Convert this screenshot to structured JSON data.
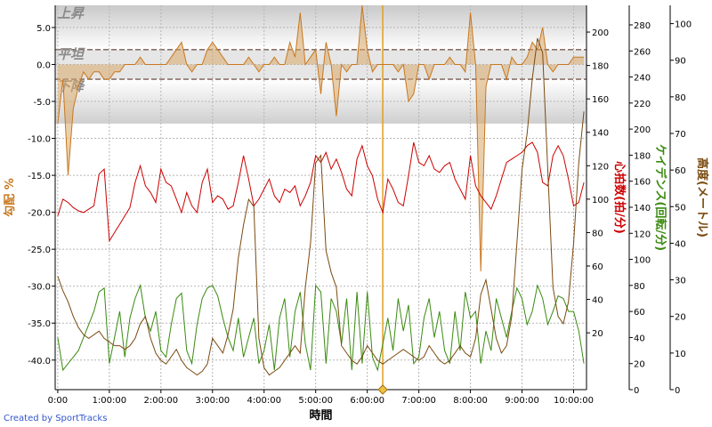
{
  "chart_data": {
    "type": "line",
    "xlabel": "時間",
    "x_ticks": [
      "0:00",
      "1:00:00",
      "2:00:00",
      "3:00:00",
      "4:00:00",
      "5:00:00",
      "6:00:00",
      "7:00:00",
      "8:00:00",
      "9:00:00",
      "10:00:00"
    ],
    "x_hours": [
      0,
      1,
      2,
      3,
      4,
      5,
      6,
      7,
      8,
      9,
      10
    ],
    "xlim_hours": [
      -0.05,
      10.25
    ],
    "marker_hour": 6.3,
    "grid": true,
    "bands": {
      "upper_label": "上昇",
      "flat_label": "平坦",
      "lower_label": "下降",
      "flat_range": [
        -2,
        2
      ]
    },
    "axes": {
      "grade": {
        "label": "勾配 %",
        "range": [
          -44,
          8
        ],
        "ticks": [
          "5.0",
          "0.0",
          "-5.0",
          "-10.0",
          "-15.0",
          "-20.0",
          "-25.0",
          "-30.0",
          "-35.0",
          "-40.0"
        ],
        "tick_values": [
          5,
          0,
          -5,
          -10,
          -15,
          -20,
          -25,
          -30,
          -35,
          -40
        ],
        "color": "#c8781e"
      },
      "heart_rate": {
        "label": "心拍数(拍/分)",
        "range": [
          -14,
          216
        ],
        "ticks": [
          "200",
          "180",
          "160",
          "140",
          "120",
          "100",
          "80",
          "60",
          "40",
          "20"
        ],
        "tick_values": [
          200,
          180,
          160,
          140,
          120,
          100,
          80,
          60,
          40,
          20
        ],
        "color": "#cc0000"
      },
      "cadence": {
        "label": "ケイデンス(回転/分)",
        "range": [
          0,
          295
        ],
        "ticks": [
          "280",
          "260",
          "240",
          "220",
          "200",
          "180",
          "160",
          "140",
          "120",
          "100",
          "80",
          "60",
          "40",
          "20",
          "0"
        ],
        "tick_values": [
          280,
          260,
          240,
          220,
          200,
          180,
          160,
          140,
          120,
          100,
          80,
          60,
          40,
          20,
          0
        ],
        "color": "#3a8a10"
      },
      "elevation": {
        "label": "高度(メートル)",
        "range": [
          0,
          105
        ],
        "ticks": [
          "100",
          "90",
          "80",
          "70",
          "60",
          "50",
          "40",
          "30",
          "20",
          "10",
          "0"
        ],
        "tick_values": [
          100,
          90,
          80,
          70,
          60,
          50,
          40,
          30,
          20,
          10,
          0
        ],
        "color": "#7a4a10"
      }
    },
    "series": [
      {
        "name": "勾配",
        "axis": "grade",
        "color": "#c8781e",
        "x": [
          0.0,
          0.1,
          0.2,
          0.3,
          0.4,
          0.5,
          0.6,
          0.7,
          0.8,
          0.9,
          1.0,
          1.1,
          1.2,
          1.3,
          1.4,
          1.5,
          1.6,
          1.7,
          1.8,
          1.9,
          2.0,
          2.1,
          2.2,
          2.3,
          2.4,
          2.5,
          2.6,
          2.7,
          2.8,
          2.9,
          3.0,
          3.1,
          3.2,
          3.3,
          3.4,
          3.5,
          3.6,
          3.7,
          3.8,
          3.9,
          4.0,
          4.1,
          4.2,
          4.3,
          4.4,
          4.5,
          4.6,
          4.7,
          4.8,
          4.9,
          5.0,
          5.1,
          5.2,
          5.3,
          5.4,
          5.5,
          5.6,
          5.7,
          5.8,
          5.9,
          6.0,
          6.1,
          6.2,
          6.3,
          6.4,
          6.5,
          6.6,
          6.7,
          6.8,
          6.9,
          7.0,
          7.1,
          7.2,
          7.3,
          7.4,
          7.5,
          7.6,
          7.7,
          7.8,
          7.9,
          8.0,
          8.1,
          8.2,
          8.3,
          8.4,
          8.5,
          8.6,
          8.7,
          8.8,
          8.9,
          9.0,
          9.1,
          9.2,
          9.3,
          9.4,
          9.5,
          9.6,
          9.7,
          9.8,
          9.9,
          10.0,
          10.1,
          10.2
        ],
        "values": [
          -8,
          -2,
          -15,
          -6,
          -3,
          -1,
          -2,
          -1,
          -1,
          -2,
          -2,
          -1,
          -1,
          0,
          0,
          0,
          1,
          0,
          0,
          0,
          0,
          0,
          1,
          2,
          3,
          0,
          -1,
          0,
          0,
          2,
          3,
          2,
          1,
          0,
          0,
          0,
          0,
          1,
          0,
          -1,
          0,
          0,
          1,
          0,
          0,
          3,
          1,
          7,
          0,
          1,
          2,
          -4,
          3,
          0,
          -7,
          0,
          -1,
          0,
          0,
          8,
          2,
          -1,
          0,
          0,
          0,
          0,
          -1,
          0,
          -5,
          -4,
          0,
          0,
          -2,
          0,
          0,
          0,
          1,
          0,
          0,
          -1,
          7,
          0,
          -28,
          -3,
          0,
          0,
          0,
          -2,
          1,
          0,
          0,
          1,
          3,
          2,
          5,
          0,
          -1,
          0,
          0,
          0,
          1,
          1,
          1
        ]
      },
      {
        "name": "心拍数",
        "axis": "heart_rate",
        "color": "#cc0000",
        "x": [
          0.0,
          0.1,
          0.2,
          0.3,
          0.4,
          0.5,
          0.6,
          0.7,
          0.8,
          0.9,
          1.0,
          1.1,
          1.2,
          1.3,
          1.4,
          1.5,
          1.6,
          1.7,
          1.8,
          1.9,
          2.0,
          2.1,
          2.2,
          2.3,
          2.4,
          2.5,
          2.6,
          2.7,
          2.8,
          2.9,
          3.0,
          3.1,
          3.2,
          3.3,
          3.4,
          3.5,
          3.6,
          3.7,
          3.8,
          3.9,
          4.0,
          4.1,
          4.2,
          4.3,
          4.4,
          4.5,
          4.6,
          4.7,
          4.8,
          4.9,
          5.0,
          5.1,
          5.2,
          5.3,
          5.4,
          5.5,
          5.6,
          5.7,
          5.8,
          5.9,
          6.0,
          6.1,
          6.2,
          6.3,
          6.4,
          6.5,
          6.6,
          6.7,
          6.8,
          6.9,
          7.0,
          7.1,
          7.2,
          7.3,
          7.4,
          7.5,
          7.6,
          7.7,
          7.8,
          7.9,
          8.0,
          8.1,
          8.2,
          8.3,
          8.4,
          8.5,
          8.6,
          8.7,
          8.8,
          8.9,
          9.0,
          9.1,
          9.2,
          9.3,
          9.4,
          9.5,
          9.6,
          9.7,
          9.8,
          9.9,
          10.0,
          10.1,
          10.2
        ],
        "values": [
          90,
          100,
          98,
          95,
          93,
          92,
          94,
          96,
          115,
          118,
          75,
          80,
          85,
          90,
          95,
          110,
          120,
          108,
          104,
          98,
          118,
          110,
          108,
          100,
          92,
          104,
          96,
          92,
          110,
          118,
          98,
          102,
          100,
          94,
          96,
          110,
          126,
          112,
          96,
          100,
          106,
          112,
          102,
          98,
          106,
          104,
          108,
          96,
          102,
          110,
          126,
          122,
          128,
          118,
          124,
          116,
          106,
          102,
          124,
          132,
          120,
          114,
          100,
          92,
          112,
          106,
          98,
          96,
          114,
          134,
          122,
          120,
          126,
          118,
          116,
          120,
          122,
          112,
          106,
          100,
          126,
          108,
          102,
          98,
          94,
          102,
          112,
          122,
          124,
          126,
          128,
          132,
          134,
          128,
          110,
          108,
          126,
          132,
          126,
          112,
          96,
          98,
          110
        ]
      },
      {
        "name": "ケイデンス",
        "axis": "cadence",
        "color": "#3a8a10",
        "x": [
          0.0,
          0.1,
          0.2,
          0.3,
          0.4,
          0.5,
          0.6,
          0.7,
          0.8,
          0.9,
          1.0,
          1.1,
          1.2,
          1.3,
          1.4,
          1.5,
          1.6,
          1.7,
          1.8,
          1.9,
          2.0,
          2.1,
          2.2,
          2.3,
          2.4,
          2.5,
          2.6,
          2.7,
          2.8,
          2.9,
          3.0,
          3.1,
          3.2,
          3.3,
          3.4,
          3.5,
          3.6,
          3.7,
          3.8,
          3.9,
          4.0,
          4.1,
          4.2,
          4.3,
          4.4,
          4.5,
          4.6,
          4.7,
          4.8,
          4.9,
          5.0,
          5.1,
          5.2,
          5.3,
          5.4,
          5.5,
          5.6,
          5.7,
          5.8,
          5.9,
          6.0,
          6.1,
          6.2,
          6.3,
          6.4,
          6.5,
          6.6,
          6.7,
          6.8,
          6.9,
          7.0,
          7.1,
          7.2,
          7.3,
          7.4,
          7.5,
          7.6,
          7.7,
          7.8,
          7.9,
          8.0,
          8.1,
          8.2,
          8.3,
          8.4,
          8.5,
          8.6,
          8.7,
          8.8,
          8.9,
          9.0,
          9.1,
          9.2,
          9.3,
          9.4,
          9.5,
          9.6,
          9.7,
          9.8,
          9.9,
          10.0,
          10.1,
          10.2
        ],
        "values": [
          40,
          15,
          20,
          25,
          30,
          40,
          50,
          60,
          75,
          78,
          20,
          40,
          60,
          25,
          55,
          70,
          80,
          55,
          45,
          60,
          30,
          25,
          50,
          70,
          74,
          30,
          20,
          50,
          70,
          78,
          80,
          72,
          55,
          40,
          30,
          55,
          25,
          40,
          55,
          20,
          30,
          50,
          15,
          55,
          70,
          25,
          60,
          75,
          35,
          15,
          80,
          75,
          20,
          70,
          60,
          35,
          70,
          15,
          75,
          20,
          75,
          25,
          15,
          35,
          55,
          30,
          70,
          45,
          65,
          20,
          25,
          55,
          70,
          40,
          60,
          30,
          20,
          60,
          30,
          75,
          55,
          60,
          20,
          45,
          30,
          70,
          55,
          40,
          60,
          78,
          70,
          50,
          60,
          80,
          70,
          50,
          60,
          72,
          70,
          60,
          60,
          45,
          20
        ]
      },
      {
        "name": "高度",
        "axis": "elevation",
        "color": "#7a4a10",
        "x": [
          0.0,
          0.1,
          0.2,
          0.3,
          0.4,
          0.5,
          0.6,
          0.7,
          0.8,
          0.9,
          1.0,
          1.1,
          1.2,
          1.3,
          1.4,
          1.5,
          1.6,
          1.7,
          1.8,
          1.9,
          2.0,
          2.1,
          2.2,
          2.3,
          2.4,
          2.5,
          2.6,
          2.7,
          2.8,
          2.9,
          3.0,
          3.1,
          3.2,
          3.3,
          3.4,
          3.5,
          3.6,
          3.7,
          3.8,
          3.9,
          4.0,
          4.1,
          4.2,
          4.3,
          4.4,
          4.5,
          4.6,
          4.7,
          4.8,
          4.9,
          5.0,
          5.1,
          5.2,
          5.3,
          5.4,
          5.5,
          5.6,
          5.7,
          5.8,
          5.9,
          6.0,
          6.1,
          6.2,
          6.3,
          6.4,
          6.5,
          6.6,
          6.7,
          6.8,
          6.9,
          7.0,
          7.1,
          7.2,
          7.3,
          7.4,
          7.5,
          7.6,
          7.7,
          7.8,
          7.9,
          8.0,
          8.1,
          8.2,
          8.3,
          8.4,
          8.5,
          8.6,
          8.7,
          8.8,
          8.9,
          9.0,
          9.1,
          9.2,
          9.3,
          9.4,
          9.5,
          9.6,
          9.7,
          9.8,
          9.9,
          10.0,
          10.1,
          10.2
        ],
        "values": [
          31,
          27,
          24,
          20,
          17,
          15,
          14,
          15,
          16,
          14,
          13,
          12,
          12,
          11,
          12,
          14,
          18,
          20,
          14,
          10,
          8,
          7,
          9,
          11,
          8,
          6,
          5,
          4,
          5,
          7,
          14,
          12,
          10,
          15,
          22,
          36,
          45,
          52,
          50,
          14,
          6,
          4,
          5,
          6,
          8,
          10,
          12,
          10,
          28,
          40,
          62,
          64,
          38,
          32,
          28,
          12,
          10,
          8,
          7,
          9,
          12,
          10,
          8,
          7,
          8,
          9,
          10,
          11,
          10,
          9,
          8,
          9,
          12,
          10,
          8,
          7,
          8,
          10,
          12,
          10,
          9,
          14,
          26,
          30,
          22,
          14,
          10,
          12,
          20,
          40,
          60,
          70,
          85,
          96,
          92,
          60,
          28,
          20,
          18,
          24,
          40,
          62,
          76
        ]
      }
    ]
  },
  "credit": "Created by SportTracks"
}
